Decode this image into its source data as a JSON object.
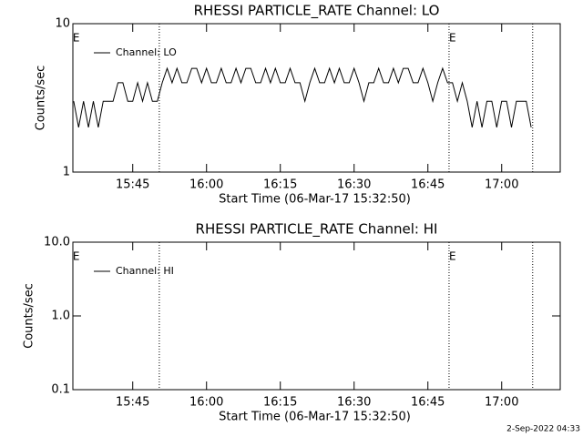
{
  "chart_data": [
    {
      "type": "line",
      "title": "RHESSI PARTICLE_RATE Channel: LO",
      "xlabel": "Start Time (06-Mar-17 15:32:50)",
      "ylabel": "Counts/sec",
      "log_y": true,
      "ylim": [
        1,
        10
      ],
      "yticks": [
        1,
        10
      ],
      "xlim": [
        932.83,
        1031.9
      ],
      "xticks": [
        {
          "value": 945,
          "label": "15:45"
        },
        {
          "value": 960,
          "label": "16:00"
        },
        {
          "value": 975,
          "label": "16:15"
        },
        {
          "value": 990,
          "label": "16:30"
        },
        {
          "value": 1005,
          "label": "16:45"
        },
        {
          "value": 1020,
          "label": "17:00"
        }
      ],
      "vlines": [
        950.4,
        1009.3,
        1026.3
      ],
      "annotations": [
        {
          "text": "E",
          "x": 933.5
        },
        {
          "text": "E",
          "x": 1010
        }
      ],
      "legend": "upper left",
      "x": [
        933,
        934,
        935,
        936,
        937,
        938,
        939,
        940,
        941,
        942,
        943,
        944,
        945,
        946,
        947,
        948,
        949,
        950,
        951,
        952,
        953,
        954,
        955,
        956,
        957,
        958,
        959,
        960,
        961,
        962,
        963,
        964,
        965,
        966,
        967,
        968,
        969,
        970,
        971,
        972,
        973,
        974,
        975,
        976,
        977,
        978,
        979,
        980,
        981,
        982,
        983,
        984,
        985,
        986,
        987,
        988,
        989,
        990,
        991,
        992,
        993,
        994,
        995,
        996,
        997,
        998,
        999,
        1000,
        1001,
        1002,
        1003,
        1004,
        1005,
        1006,
        1007,
        1008,
        1009,
        1010,
        1011,
        1012,
        1013,
        1014,
        1015,
        1016,
        1017,
        1018,
        1019,
        1020,
        1021,
        1022,
        1023,
        1024,
        1025,
        1026
      ],
      "series": [
        {
          "name": "Channel: LO",
          "color": "#000000",
          "values": [
            3,
            2,
            3,
            2,
            3,
            2,
            3,
            3,
            3,
            4,
            4,
            3,
            3,
            4,
            3,
            4,
            3,
            3,
            4,
            5,
            4,
            5,
            4,
            4,
            5,
            5,
            4,
            5,
            4,
            4,
            5,
            4,
            4,
            5,
            4,
            5,
            5,
            4,
            4,
            5,
            4,
            5,
            4,
            4,
            5,
            4,
            4,
            3,
            4,
            5,
            4,
            4,
            5,
            4,
            5,
            4,
            4,
            5,
            4,
            3,
            4,
            4,
            5,
            4,
            4,
            5,
            4,
            5,
            5,
            4,
            4,
            5,
            4,
            3,
            4,
            5,
            4,
            4,
            3,
            4,
            3,
            2,
            3,
            2,
            3,
            3,
            2,
            3,
            3,
            2,
            3,
            3,
            3,
            2
          ]
        }
      ]
    },
    {
      "type": "line",
      "title": "RHESSI PARTICLE_RATE Channel: HI",
      "xlabel": "Start Time (06-Mar-17 15:32:50)",
      "ylabel": "Counts/sec",
      "log_y": true,
      "ylim": [
        0.1,
        10
      ],
      "yticks": [
        0.1,
        {
          "value": 1,
          "label": "1.0"
        },
        {
          "value": 10,
          "label": "10.0"
        }
      ],
      "xlim": [
        932.83,
        1031.9
      ],
      "xticks": [
        {
          "value": 945,
          "label": "15:45"
        },
        {
          "value": 960,
          "label": "16:00"
        },
        {
          "value": 975,
          "label": "16:15"
        },
        {
          "value": 990,
          "label": "16:30"
        },
        {
          "value": 1005,
          "label": "16:45"
        },
        {
          "value": 1020,
          "label": "17:00"
        }
      ],
      "vlines": [
        950.4,
        1009.3,
        1026.3
      ],
      "annotations": [
        {
          "text": "E",
          "x": 933.5
        },
        {
          "text": "E",
          "x": 1010
        }
      ],
      "legend": "upper left",
      "x": [],
      "series": [
        {
          "name": "Channel: HI",
          "color": "#000000",
          "values": []
        }
      ]
    }
  ],
  "footer": "2-Sep-2022 04:33"
}
